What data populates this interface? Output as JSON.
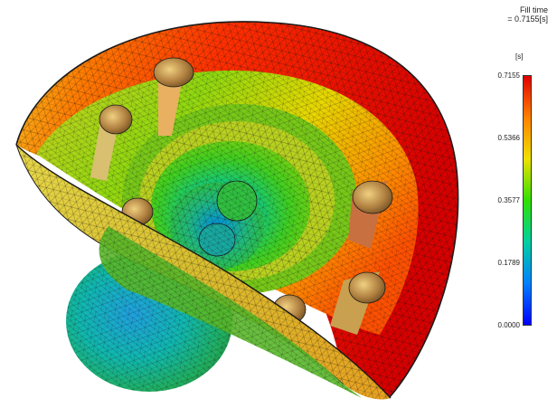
{
  "legend": {
    "title_line1": "Fill time",
    "title_line2": "= 0.7155[s]",
    "units": "[s]",
    "ticks": [
      "0.7155",
      "0.5366",
      "0.3577",
      "0.1789",
      "0.0000"
    ],
    "colors": [
      "#e00000",
      "#ff8000",
      "#f0e000",
      "#30e000",
      "#00d0a0",
      "#0080ff",
      "#0000ff"
    ]
  }
}
